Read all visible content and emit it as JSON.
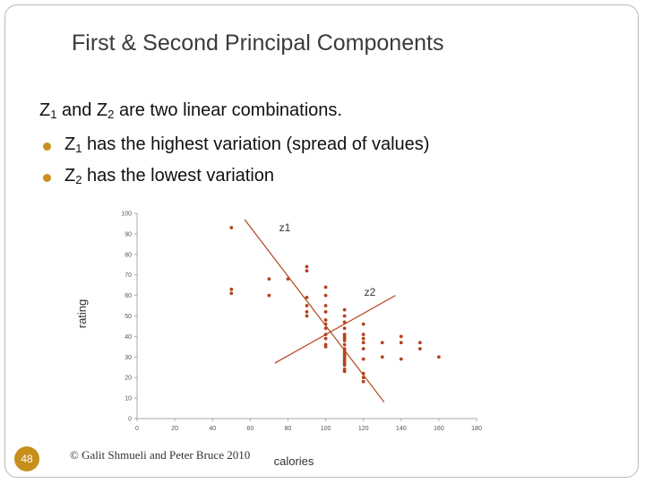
{
  "slide": {
    "title": "First & Second Principal Components",
    "body": {
      "line1": {
        "a": "Z",
        "a_sub": "1",
        "b": " and Z",
        "b_sub": "2",
        "c": " are two linear combinations."
      },
      "line2": {
        "a": "Z",
        "a_sub": "1",
        "b": " has the highest variation (spread of values)"
      },
      "line3": {
        "a": "Z",
        "a_sub": "2",
        "b": " has the lowest variation"
      }
    },
    "slide_number": "48",
    "copyright": "© Galit Shmueli and Peter Bruce 2010"
  },
  "colors": {
    "accent": "#c98f1c",
    "data": "#b5431c",
    "axis": "#aaaaaa"
  },
  "chart_data": {
    "type": "scatter",
    "xlabel": "calories",
    "ylabel": "rating",
    "xlim": [
      0,
      180
    ],
    "ylim": [
      0,
      100
    ],
    "x_ticks": [
      "0",
      "20",
      "40",
      "60",
      "80",
      "100",
      "120",
      "140",
      "160",
      "180"
    ],
    "y_ticks": [
      "0",
      "10",
      "20",
      "30",
      "40",
      "50",
      "60",
      "70",
      "80",
      "90",
      "100"
    ],
    "points": [
      [
        50,
        93
      ],
      [
        50,
        63
      ],
      [
        50,
        61
      ],
      [
        70,
        68
      ],
      [
        70,
        60
      ],
      [
        80,
        68
      ],
      [
        90,
        74
      ],
      [
        90,
        72
      ],
      [
        90,
        59
      ],
      [
        90,
        55
      ],
      [
        90,
        52
      ],
      [
        90,
        50
      ],
      [
        100,
        64
      ],
      [
        100,
        60
      ],
      [
        100,
        55
      ],
      [
        100,
        52
      ],
      [
        100,
        48
      ],
      [
        100,
        46
      ],
      [
        100,
        44
      ],
      [
        100,
        41
      ],
      [
        100,
        39
      ],
      [
        100,
        36
      ],
      [
        100,
        35
      ],
      [
        110,
        53
      ],
      [
        110,
        50
      ],
      [
        110,
        47
      ],
      [
        110,
        44
      ],
      [
        110,
        41
      ],
      [
        110,
        40
      ],
      [
        110,
        39
      ],
      [
        110,
        38
      ],
      [
        110,
        36
      ],
      [
        110,
        34
      ],
      [
        110,
        33
      ],
      [
        110,
        32
      ],
      [
        110,
        31
      ],
      [
        110,
        30
      ],
      [
        110,
        29
      ],
      [
        110,
        28
      ],
      [
        110,
        27
      ],
      [
        110,
        26
      ],
      [
        110,
        24
      ],
      [
        110,
        23
      ],
      [
        120,
        46
      ],
      [
        120,
        41
      ],
      [
        120,
        39
      ],
      [
        120,
        37
      ],
      [
        120,
        34
      ],
      [
        120,
        29
      ],
      [
        120,
        22
      ],
      [
        120,
        20
      ],
      [
        120,
        18
      ],
      [
        130,
        37
      ],
      [
        130,
        30
      ],
      [
        140,
        40
      ],
      [
        140,
        37
      ],
      [
        140,
        29
      ],
      [
        150,
        37
      ],
      [
        150,
        34
      ],
      [
        160,
        30
      ]
    ],
    "lines": [
      {
        "name": "z1",
        "from": [
          57,
          97
        ],
        "to": [
          131,
          8
        ]
      },
      {
        "name": "z2",
        "from": [
          73,
          27
        ],
        "to": [
          137,
          60
        ]
      }
    ]
  }
}
